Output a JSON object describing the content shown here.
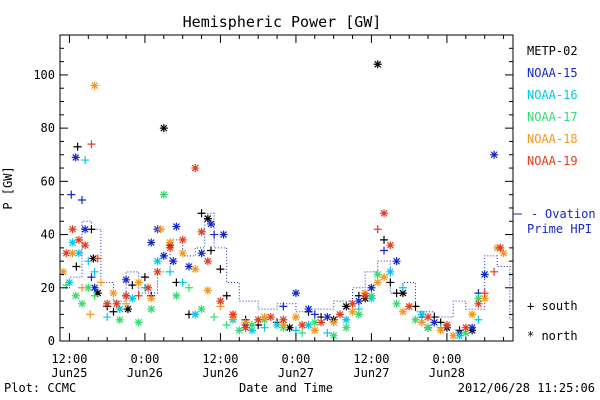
{
  "chart_data": {
    "type": "scatter",
    "title": "Hemispheric Power [GW]",
    "ylabel": "P [GW]",
    "xlabel": "Date and Time",
    "ylim": [
      0,
      115
    ],
    "y_ticks": [
      0,
      20,
      40,
      60,
      80,
      100
    ],
    "x_ticks": [
      {
        "t": 0,
        "time": "12:00",
        "date": "Jun25"
      },
      {
        "t": 12,
        "time": "0:00",
        "date": "Jun26"
      },
      {
        "t": 24,
        "time": "12:00",
        "date": "Jun26"
      },
      {
        "t": 36,
        "time": "0:00",
        "date": "Jun27"
      },
      {
        "t": 48,
        "time": "12:00",
        "date": "Jun27"
      },
      {
        "t": 60,
        "time": "0:00",
        "date": "Jun28"
      }
    ],
    "xlim_hours_from_first_tick": [
      -1.5,
      70.5
    ],
    "legend": {
      "placement": "right"
    },
    "marker_legend": [
      {
        "symbol": "+",
        "label": "south"
      },
      {
        "symbol": "*",
        "label": "north"
      }
    ],
    "series": [
      {
        "name": "METP-02",
        "color": "#000000",
        "points": [
          [
            1.1,
            28,
            "s"
          ],
          [
            1.3,
            73,
            "s"
          ],
          [
            3.5,
            42,
            "s"
          ],
          [
            3.8,
            31,
            "n"
          ],
          [
            4.5,
            18,
            "n"
          ],
          [
            6,
            13,
            "s"
          ],
          [
            7,
            11,
            "s"
          ],
          [
            9,
            17,
            "s"
          ],
          [
            9.3,
            12,
            "n"
          ],
          [
            10,
            21,
            "s"
          ],
          [
            12,
            24,
            "s"
          ],
          [
            13,
            17,
            "s"
          ],
          [
            15,
            80,
            "n"
          ],
          [
            16,
            36,
            "n"
          ],
          [
            17,
            22,
            "s"
          ],
          [
            19,
            10,
            "s"
          ],
          [
            21,
            48,
            "s"
          ],
          [
            22,
            46,
            "n"
          ],
          [
            22.5,
            34,
            "s"
          ],
          [
            24,
            27,
            "s"
          ],
          [
            25,
            17,
            "s"
          ],
          [
            28,
            8,
            "s"
          ],
          [
            30,
            6,
            "s"
          ],
          [
            33,
            7,
            "s"
          ],
          [
            35,
            5,
            "n"
          ],
          [
            38,
            11,
            "s"
          ],
          [
            40,
            9,
            "s"
          ],
          [
            42,
            8,
            "n"
          ],
          [
            44,
            13,
            "n"
          ],
          [
            46,
            17,
            "s"
          ],
          [
            47,
            16,
            "n"
          ],
          [
            49,
            104,
            "n"
          ],
          [
            50,
            38,
            "s"
          ],
          [
            51,
            22,
            "s"
          ],
          [
            52,
            18,
            "s"
          ],
          [
            53,
            18,
            "n"
          ],
          [
            55,
            13,
            "s"
          ],
          [
            57,
            5,
            "n"
          ],
          [
            58,
            9,
            "s"
          ],
          [
            59,
            7,
            "s"
          ],
          [
            60,
            5,
            "n"
          ],
          [
            62,
            4,
            "s"
          ],
          [
            64,
            4,
            "n"
          ]
        ]
      },
      {
        "name": "NOAA-15",
        "color": "#1428c8",
        "points": [
          [
            0.3,
            55,
            "s"
          ],
          [
            1,
            69,
            "n"
          ],
          [
            2,
            53,
            "s"
          ],
          [
            2.5,
            42,
            "n"
          ],
          [
            3.5,
            24,
            "s"
          ],
          [
            4,
            20,
            "n"
          ],
          [
            9,
            23,
            "n"
          ],
          [
            13,
            37,
            "n"
          ],
          [
            14,
            42,
            "n"
          ],
          [
            15,
            32,
            "n"
          ],
          [
            16.5,
            30,
            "n"
          ],
          [
            17,
            43,
            "n"
          ],
          [
            19,
            28,
            "n"
          ],
          [
            21,
            33,
            "n"
          ],
          [
            22.5,
            44,
            "n"
          ],
          [
            23,
            40,
            "s"
          ],
          [
            24.5,
            40,
            "n"
          ],
          [
            28,
            6,
            "n"
          ],
          [
            34,
            13,
            "s"
          ],
          [
            36,
            18,
            "n"
          ],
          [
            38,
            12,
            "n"
          ],
          [
            39,
            10,
            "s"
          ],
          [
            41,
            9,
            "n"
          ],
          [
            46,
            15,
            "n"
          ],
          [
            48,
            20,
            "n"
          ],
          [
            50,
            34,
            "s"
          ],
          [
            52,
            30,
            "n"
          ],
          [
            56,
            9,
            "s"
          ],
          [
            58,
            7,
            "n"
          ],
          [
            60,
            5,
            "s"
          ],
          [
            62,
            3,
            "n"
          ],
          [
            64,
            5,
            "n"
          ],
          [
            65,
            18,
            "s"
          ],
          [
            66,
            25,
            "n"
          ],
          [
            67.5,
            70,
            "n"
          ]
        ]
      },
      {
        "name": "NOAA-16",
        "color": "#00c8e6",
        "points": [
          [
            0,
            22,
            "n"
          ],
          [
            0.5,
            37,
            "n"
          ],
          [
            1.5,
            33,
            "n"
          ],
          [
            2.5,
            68,
            "s"
          ],
          [
            3,
            30,
            "s"
          ],
          [
            4,
            26,
            "s"
          ],
          [
            6,
            9,
            "s"
          ],
          [
            8,
            12,
            "n"
          ],
          [
            10,
            16,
            "n"
          ],
          [
            12,
            20,
            "s"
          ],
          [
            14,
            30,
            "n"
          ],
          [
            16,
            26,
            "s"
          ],
          [
            18,
            22,
            "s"
          ],
          [
            20,
            10,
            "n"
          ],
          [
            22,
            19,
            "s"
          ],
          [
            24,
            15,
            "s"
          ],
          [
            26,
            8,
            "n"
          ],
          [
            29,
            4,
            "n"
          ],
          [
            31,
            5,
            "s"
          ],
          [
            33,
            6,
            "n"
          ],
          [
            36,
            4,
            "s"
          ],
          [
            38,
            6,
            "n"
          ],
          [
            41,
            3,
            "s"
          ],
          [
            44,
            8,
            "n"
          ],
          [
            46,
            12,
            "s"
          ],
          [
            48,
            16,
            "n"
          ],
          [
            51,
            26,
            "n"
          ],
          [
            53,
            20,
            "s"
          ],
          [
            56,
            10,
            "n"
          ],
          [
            59,
            5,
            "s"
          ],
          [
            62,
            2,
            "n"
          ],
          [
            65,
            8,
            "s"
          ]
        ]
      },
      {
        "name": "NOAA-17",
        "color": "#32dc6e",
        "points": [
          [
            -0.5,
            21,
            "s"
          ],
          [
            1,
            17,
            "n"
          ],
          [
            2,
            14,
            "n"
          ],
          [
            3,
            20,
            "n"
          ],
          [
            4,
            17,
            "s"
          ],
          [
            8,
            8,
            "n"
          ],
          [
            11,
            7,
            "n"
          ],
          [
            13,
            12,
            "n"
          ],
          [
            15,
            55,
            "n"
          ],
          [
            17,
            17,
            "n"
          ],
          [
            19,
            20,
            "s"
          ],
          [
            21,
            12,
            "n"
          ],
          [
            23,
            9,
            "s"
          ],
          [
            25,
            6,
            "s"
          ],
          [
            27,
            4,
            "n"
          ],
          [
            29,
            6,
            "n"
          ],
          [
            31,
            8,
            "n"
          ],
          [
            34,
            5,
            "n"
          ],
          [
            37,
            3,
            "s"
          ],
          [
            39,
            7,
            "n"
          ],
          [
            42,
            2,
            "n"
          ],
          [
            44,
            5,
            "n"
          ],
          [
            46,
            10,
            "n"
          ],
          [
            48,
            17,
            "n"
          ],
          [
            49,
            25,
            "n"
          ],
          [
            52,
            14,
            "n"
          ],
          [
            55,
            8,
            "n"
          ],
          [
            57,
            5,
            "n"
          ],
          [
            60,
            6,
            "s"
          ],
          [
            63,
            3,
            "n"
          ],
          [
            65,
            16,
            "n"
          ]
        ]
      },
      {
        "name": "NOAA-18",
        "color": "#f5961e",
        "points": [
          [
            -1,
            26,
            "n"
          ],
          [
            0.5,
            33,
            "n"
          ],
          [
            2,
            20,
            "s"
          ],
          [
            3.3,
            10,
            "s"
          ],
          [
            4,
            96,
            "n"
          ],
          [
            5,
            22,
            "s"
          ],
          [
            7,
            18,
            "n"
          ],
          [
            9,
            14,
            "s"
          ],
          [
            11,
            22,
            "n"
          ],
          [
            13,
            16,
            "n"
          ],
          [
            14.5,
            42,
            "n"
          ],
          [
            16,
            37,
            "n"
          ],
          [
            18,
            33,
            "n"
          ],
          [
            20,
            27,
            "n"
          ],
          [
            22,
            19,
            "n"
          ],
          [
            24,
            13,
            "s"
          ],
          [
            26,
            9,
            "n"
          ],
          [
            28,
            7,
            "n"
          ],
          [
            31,
            9,
            "n"
          ],
          [
            34,
            6,
            "n"
          ],
          [
            36,
            9,
            "n"
          ],
          [
            39,
            4,
            "n"
          ],
          [
            42,
            7,
            "n"
          ],
          [
            45,
            11,
            "n"
          ],
          [
            47,
            18,
            "n"
          ],
          [
            49,
            22,
            "n"
          ],
          [
            50,
            24,
            "n"
          ],
          [
            53,
            11,
            "n"
          ],
          [
            56,
            7,
            "n"
          ],
          [
            59,
            4,
            "n"
          ],
          [
            61,
            2,
            "n"
          ],
          [
            64,
            10,
            "n"
          ],
          [
            66,
            16,
            "n"
          ],
          [
            68,
            35,
            "n"
          ],
          [
            69,
            33,
            "n"
          ]
        ]
      },
      {
        "name": "NOAA-19",
        "color": "#e63c1e",
        "points": [
          [
            -0.5,
            33,
            "n"
          ],
          [
            0.5,
            42,
            "n"
          ],
          [
            1.5,
            38,
            "n"
          ],
          [
            2.5,
            36,
            "n"
          ],
          [
            3.5,
            74,
            "s"
          ],
          [
            4.5,
            31,
            "s"
          ],
          [
            6,
            14,
            "n"
          ],
          [
            7.5,
            14,
            "n"
          ],
          [
            9,
            17,
            "n"
          ],
          [
            11,
            17,
            "s"
          ],
          [
            12.5,
            20,
            "n"
          ],
          [
            14,
            26,
            "n"
          ],
          [
            16,
            35,
            "n"
          ],
          [
            18,
            38,
            "n"
          ],
          [
            20,
            65,
            "n"
          ],
          [
            21,
            41,
            "n"
          ],
          [
            22,
            30,
            "n"
          ],
          [
            24,
            15,
            "n"
          ],
          [
            26,
            10,
            "n"
          ],
          [
            28,
            5,
            "n"
          ],
          [
            30,
            8,
            "n"
          ],
          [
            32,
            9,
            "n"
          ],
          [
            34,
            8,
            "n"
          ],
          [
            37,
            6,
            "n"
          ],
          [
            40,
            7,
            "n"
          ],
          [
            43,
            10,
            "n"
          ],
          [
            45,
            14,
            "n"
          ],
          [
            47,
            17,
            "n"
          ],
          [
            49,
            42,
            "s"
          ],
          [
            50,
            48,
            "n"
          ],
          [
            51,
            36,
            "n"
          ],
          [
            54,
            13,
            "n"
          ],
          [
            57,
            9,
            "n"
          ],
          [
            60,
            6,
            "n"
          ],
          [
            63,
            5,
            "n"
          ],
          [
            65,
            14,
            "n"
          ],
          [
            66,
            18,
            "s"
          ],
          [
            67.5,
            26,
            "s"
          ],
          [
            68.5,
            35,
            "n"
          ]
        ]
      }
    ],
    "ovation": {
      "name": "Ovation Prime HPI",
      "color": "#1428c8",
      "steps": [
        [
          -1.5,
          20
        ],
        [
          0,
          24
        ],
        [
          2,
          45
        ],
        [
          3.5,
          42
        ],
        [
          5,
          22
        ],
        [
          7,
          15
        ],
        [
          9,
          26
        ],
        [
          11,
          18
        ],
        [
          14,
          26
        ],
        [
          16,
          38
        ],
        [
          18,
          32
        ],
        [
          20,
          35
        ],
        [
          21.5,
          48
        ],
        [
          23,
          35
        ],
        [
          25,
          22
        ],
        [
          27,
          15
        ],
        [
          30,
          12
        ],
        [
          33,
          14
        ],
        [
          36,
          11
        ],
        [
          39,
          12
        ],
        [
          42,
          15
        ],
        [
          45,
          20
        ],
        [
          47,
          26
        ],
        [
          49,
          30
        ],
        [
          51,
          18
        ],
        [
          53,
          22
        ],
        [
          55,
          11
        ],
        [
          58,
          9
        ],
        [
          61,
          15
        ],
        [
          63,
          12
        ],
        [
          66,
          32
        ],
        [
          68,
          28
        ],
        [
          70,
          8
        ]
      ]
    }
  },
  "footer": {
    "left": "Plot: CCMC",
    "timestamp": "2012/06/28 11:25:06"
  }
}
